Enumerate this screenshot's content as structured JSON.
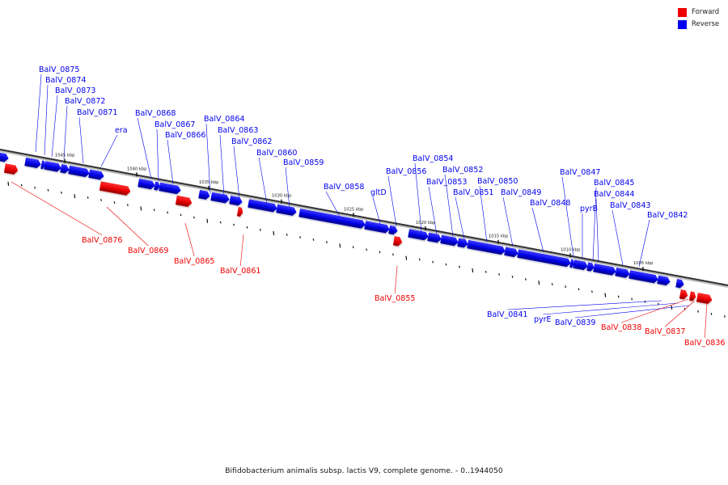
{
  "legend": {
    "forward_label": "Forward",
    "reverse_label": "Reverse",
    "forward_color": "#ee0000",
    "reverse_color": "#0000ee"
  },
  "caption": "Bifidobacterium animalis subsp. lactis V9, complete genome. - 0..1944050",
  "ticks": [
    "1045 kbp",
    "1040 kbp",
    "1035 kbp",
    "1030 kbp",
    "1025 kbp",
    "1020 kbp",
    "1015 kbp",
    "1010 kbp",
    "1005 kbp"
  ],
  "genes": [
    {
      "name": "BalV_0875",
      "strand": "reverse"
    },
    {
      "name": "BalV_0874",
      "strand": "reverse"
    },
    {
      "name": "BalV_0873",
      "strand": "reverse"
    },
    {
      "name": "BalV_0872",
      "strand": "reverse"
    },
    {
      "name": "BalV_0871",
      "strand": "reverse"
    },
    {
      "name": "era",
      "strand": "reverse"
    },
    {
      "name": "BalV_0868",
      "strand": "reverse"
    },
    {
      "name": "BalV_0867",
      "strand": "reverse"
    },
    {
      "name": "BalV_0866",
      "strand": "reverse"
    },
    {
      "name": "BalV_0864",
      "strand": "reverse"
    },
    {
      "name": "BalV_0863",
      "strand": "reverse"
    },
    {
      "name": "BalV_0862",
      "strand": "reverse"
    },
    {
      "name": "BalV_0860",
      "strand": "reverse"
    },
    {
      "name": "BalV_0859",
      "strand": "reverse"
    },
    {
      "name": "BalV_0858",
      "strand": "reverse"
    },
    {
      "name": "gltD",
      "strand": "reverse"
    },
    {
      "name": "BalV_0856",
      "strand": "reverse"
    },
    {
      "name": "BalV_0854",
      "strand": "reverse"
    },
    {
      "name": "BalV_0853",
      "strand": "reverse"
    },
    {
      "name": "BalV_0852",
      "strand": "reverse"
    },
    {
      "name": "BalV_0851",
      "strand": "reverse"
    },
    {
      "name": "BalV_0850",
      "strand": "reverse"
    },
    {
      "name": "BalV_0849",
      "strand": "reverse"
    },
    {
      "name": "BalV_0848",
      "strand": "reverse"
    },
    {
      "name": "BalV_0847",
      "strand": "reverse"
    },
    {
      "name": "pyrB",
      "strand": "reverse"
    },
    {
      "name": "BalV_0845",
      "strand": "reverse"
    },
    {
      "name": "BalV_0844",
      "strand": "reverse"
    },
    {
      "name": "BalV_0843",
      "strand": "reverse"
    },
    {
      "name": "BalV_0842",
      "strand": "reverse"
    },
    {
      "name": "BalV_0841",
      "strand": "reverse"
    },
    {
      "name": "pyrE",
      "strand": "reverse"
    },
    {
      "name": "BalV_0839",
      "strand": "reverse"
    },
    {
      "name": "BalV_0876",
      "strand": "forward"
    },
    {
      "name": "BalV_0869",
      "strand": "forward"
    },
    {
      "name": "BalV_0865",
      "strand": "forward"
    },
    {
      "name": "BalV_0861",
      "strand": "forward"
    },
    {
      "name": "BalV_0855",
      "strand": "forward"
    },
    {
      "name": "BalV_0838",
      "strand": "forward"
    },
    {
      "name": "BalV_0837",
      "strand": "forward"
    },
    {
      "name": "BalV_0836",
      "strand": "forward"
    }
  ]
}
